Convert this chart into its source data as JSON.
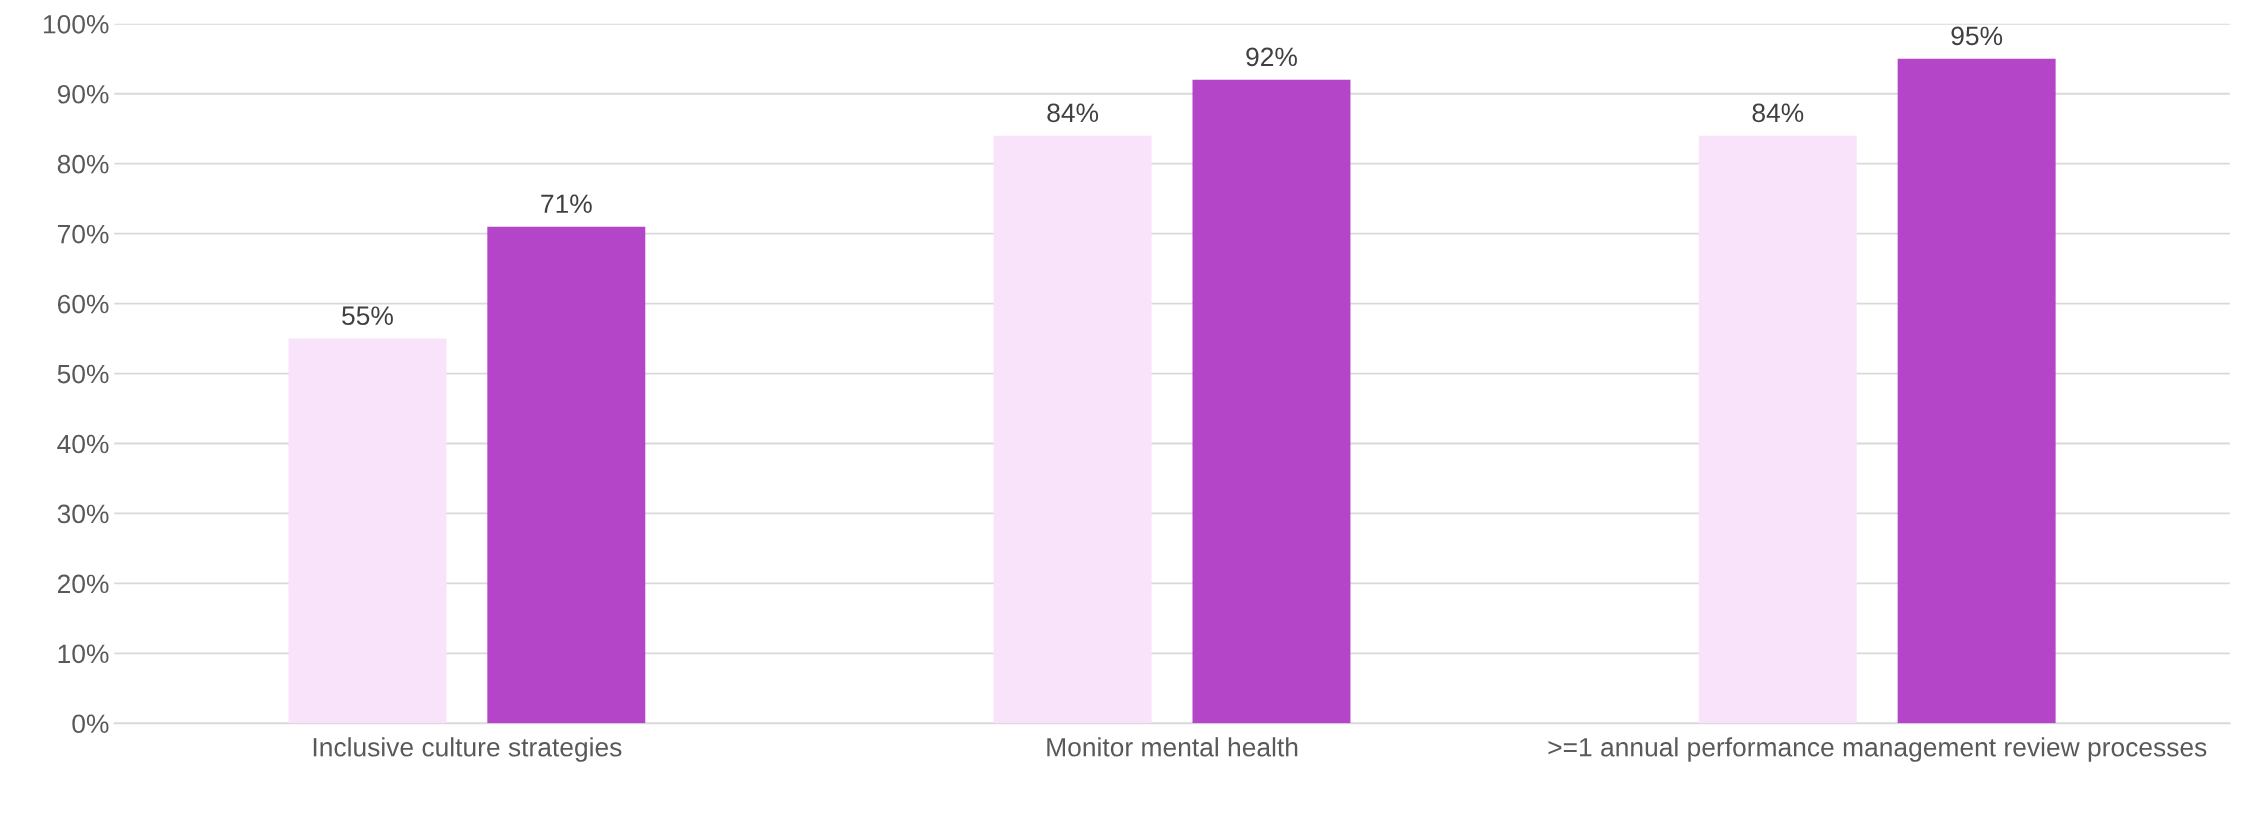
{
  "chart_data": {
    "type": "bar",
    "categories": [
      "Inclusive culture strategies",
      "Monitor mental health",
      ">=1 annual performance management review processes"
    ],
    "series": [
      {
        "color": "#f9e3fb",
        "values": [
          55,
          84,
          84
        ],
        "value_labels": [
          "55%",
          "84%",
          "84%"
        ]
      },
      {
        "color": "#b444c8",
        "values": [
          71,
          92,
          95
        ],
        "value_labels": [
          "71%",
          "92%",
          "95%"
        ]
      }
    ],
    "ylim": [
      0,
      100
    ],
    "yticks": [
      {
        "value": 0,
        "label": "0%"
      },
      {
        "value": 10,
        "label": "10%"
      },
      {
        "value": 20,
        "label": "20%"
      },
      {
        "value": 30,
        "label": "30%"
      },
      {
        "value": 40,
        "label": "40%"
      },
      {
        "value": 50,
        "label": "50%"
      },
      {
        "value": 60,
        "label": "60%"
      },
      {
        "value": 70,
        "label": "70%"
      },
      {
        "value": 80,
        "label": "80%"
      },
      {
        "value": 90,
        "label": "90%"
      },
      {
        "value": 100,
        "label": "100%"
      }
    ],
    "grid": "y",
    "legend": false
  }
}
